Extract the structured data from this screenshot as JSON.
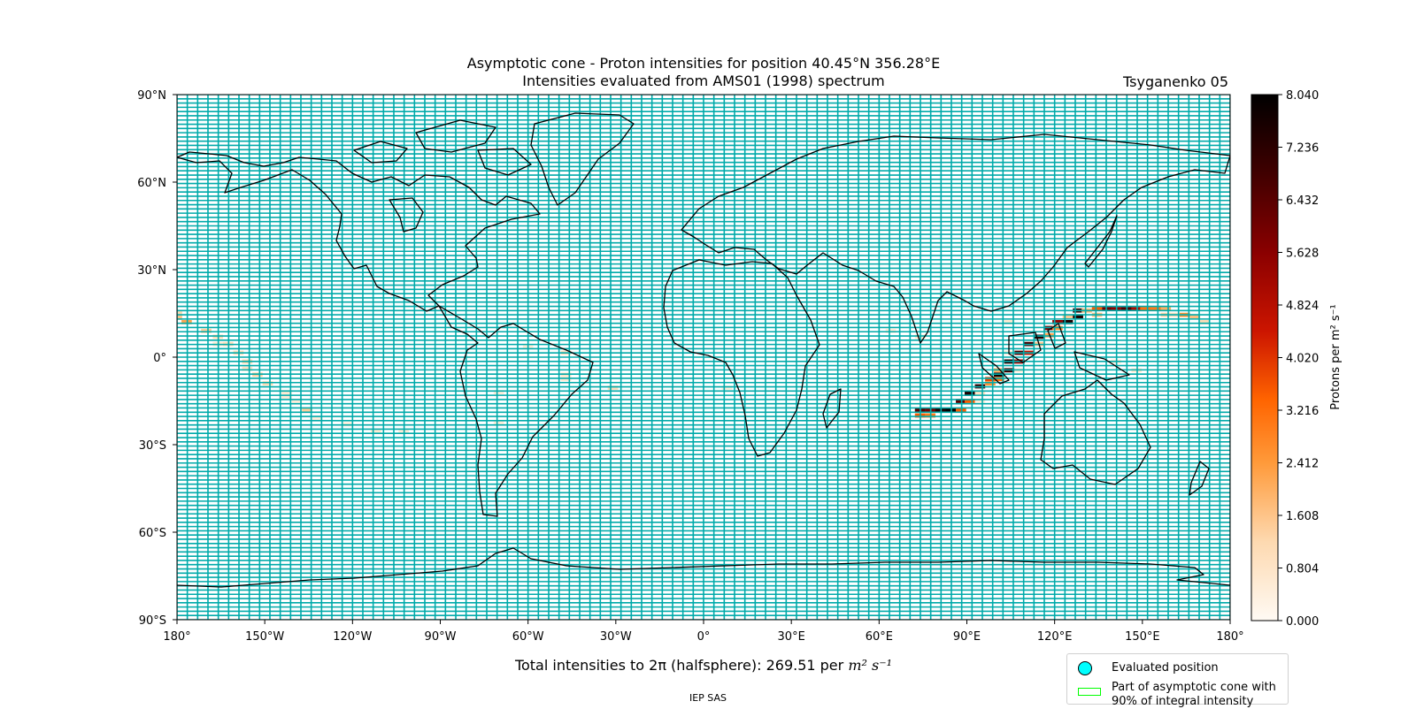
{
  "header": {
    "title_line1": "Asymptotic cone - Proton intensities for position 40.45°N 356.28°E",
    "title_line2": "Intensities evaluated from AMS01 (1998) spectrum",
    "model": "Tsyganenko 05"
  },
  "map": {
    "lat_ticks": [
      {
        "lat": 90,
        "label": "90°N"
      },
      {
        "lat": 60,
        "label": "60°N"
      },
      {
        "lat": 30,
        "label": "30°N"
      },
      {
        "lat": 0,
        "label": "0°"
      },
      {
        "lat": -30,
        "label": "30°S"
      },
      {
        "lat": -60,
        "label": "60°S"
      },
      {
        "lat": -90,
        "label": "90°S"
      }
    ],
    "lon_ticks": [
      {
        "lon": -180,
        "label": "180°"
      },
      {
        "lon": -150,
        "label": "150°W"
      },
      {
        "lon": -120,
        "label": "120°W"
      },
      {
        "lon": -90,
        "label": "90°W"
      },
      {
        "lon": -60,
        "label": "60°W"
      },
      {
        "lon": -30,
        "label": "30°W"
      },
      {
        "lon": 0,
        "label": "0°"
      },
      {
        "lon": 30,
        "label": "30°E"
      },
      {
        "lon": 60,
        "label": "60°E"
      },
      {
        "lon": 90,
        "label": "90°E"
      },
      {
        "lon": 120,
        "label": "120°E"
      },
      {
        "lon": 150,
        "label": "150°E"
      },
      {
        "lon": 180,
        "label": "180°"
      }
    ],
    "grid_color": "#00aaaa",
    "coast_color": "#000000"
  },
  "colorbar": {
    "label": "Protons per m² s⁻¹",
    "min": 0.0,
    "max": 8.04,
    "ticks": [
      "0.000",
      "0.804",
      "1.608",
      "2.412",
      "3.216",
      "4.020",
      "4.824",
      "5.628",
      "6.432",
      "7.236",
      "8.040"
    ]
  },
  "intensity_cells": [
    {
      "lon": -180,
      "lat": 13.5,
      "v": 1.6
    },
    {
      "lon": -176.7,
      "lat": 12,
      "v": 2.2
    },
    {
      "lon": -180,
      "lat": 15,
      "v": 1.2
    },
    {
      "lon": -170,
      "lat": 9,
      "v": 1.4
    },
    {
      "lon": -166,
      "lat": 7,
      "v": 1.0
    },
    {
      "lon": -166,
      "lat": 4.5,
      "v": 0.6
    },
    {
      "lon": -162.5,
      "lat": 4.5,
      "v": 1.0
    },
    {
      "lon": -159,
      "lat": 1.5,
      "v": 1.0
    },
    {
      "lon": -156,
      "lat": -1.5,
      "v": 1.2
    },
    {
      "lon": -156,
      "lat": -4,
      "v": 0.8
    },
    {
      "lon": -152.5,
      "lat": -6,
      "v": 1.3
    },
    {
      "lon": -149,
      "lat": -9,
      "v": 1.1
    },
    {
      "lon": -142.5,
      "lat": -12,
      "v": 0.6
    },
    {
      "lon": -142.5,
      "lat": -13.5,
      "v": 0.5
    },
    {
      "lon": -139,
      "lat": -15,
      "v": 0.5
    },
    {
      "lon": -135.5,
      "lat": -18,
      "v": 1.4
    },
    {
      "lon": -132,
      "lat": -21,
      "v": 0.4
    },
    {
      "lon": -122,
      "lat": -23,
      "v": 0.5
    },
    {
      "lon": -112,
      "lat": -25.5,
      "v": 0.6
    },
    {
      "lon": -102.5,
      "lat": -25.5,
      "v": 0.5
    },
    {
      "lon": -60,
      "lat": 3.5,
      "v": 0.5
    },
    {
      "lon": -70,
      "lat": -12,
      "v": 0.5
    },
    {
      "lon": -70,
      "lat": -22.5,
      "v": 0.5
    },
    {
      "lon": -47,
      "lat": 1.5,
      "v": 0.9
    },
    {
      "lon": -47,
      "lat": -6,
      "v": 0.7
    },
    {
      "lon": -47,
      "lat": -7.5,
      "v": 0.6
    },
    {
      "lon": -31,
      "lat": -10.5,
      "v": 0.9
    },
    {
      "lon": 8,
      "lat": -10.5,
      "v": 0.4
    },
    {
      "lon": 64,
      "lat": 9,
      "v": 0.5
    },
    {
      "lon": 74,
      "lat": 7,
      "v": 0.6
    },
    {
      "lon": 74,
      "lat": -18,
      "v": 6.5
    },
    {
      "lon": 77.5,
      "lat": -18,
      "v": 6.0
    },
    {
      "lon": 81,
      "lat": -18,
      "v": 7.5
    },
    {
      "lon": 84.5,
      "lat": -18,
      "v": 8.0
    },
    {
      "lon": 88,
      "lat": -18,
      "v": 3.5
    },
    {
      "lon": 74,
      "lat": -20,
      "v": 3.5
    },
    {
      "lon": 77.5,
      "lat": -20,
      "v": 3.0
    },
    {
      "lon": 88,
      "lat": -15,
      "v": 6.5
    },
    {
      "lon": 91,
      "lat": -15,
      "v": 3.5
    },
    {
      "lon": 91,
      "lat": -12.5,
      "v": 7.5
    },
    {
      "lon": 94.5,
      "lat": -12.5,
      "v": 0.8
    },
    {
      "lon": 94.5,
      "lat": -10,
      "v": 7.0
    },
    {
      "lon": 98,
      "lat": -9,
      "v": 2.5
    },
    {
      "lon": 98,
      "lat": -7.5,
      "v": 3.8
    },
    {
      "lon": 101,
      "lat": -6,
      "v": 7.8
    },
    {
      "lon": 101,
      "lat": -7.5,
      "v": 3.2
    },
    {
      "lon": 101,
      "lat": -4.5,
      "v": 2.0
    },
    {
      "lon": 104.5,
      "lat": -4.5,
      "v": 7.0
    },
    {
      "lon": 104.5,
      "lat": -1.5,
      "v": 7.5
    },
    {
      "lon": 108,
      "lat": -1.5,
      "v": 5.5
    },
    {
      "lon": 108,
      "lat": 1.5,
      "v": 6.5
    },
    {
      "lon": 111,
      "lat": 1.5,
      "v": 4.5
    },
    {
      "lon": 111,
      "lat": 4.5,
      "v": 6.8
    },
    {
      "lon": 114.5,
      "lat": 4.5,
      "v": 1.5
    },
    {
      "lon": 114.5,
      "lat": 7,
      "v": 7.5
    },
    {
      "lon": 118,
      "lat": 7.5,
      "v": 2.2
    },
    {
      "lon": 118,
      "lat": 10,
      "v": 6.0
    },
    {
      "lon": 121,
      "lat": 10,
      "v": 2.5
    },
    {
      "lon": 121,
      "lat": 12,
      "v": 5.5
    },
    {
      "lon": 124.5,
      "lat": 12,
      "v": 7.5
    },
    {
      "lon": 124.5,
      "lat": 14,
      "v": 1.5
    },
    {
      "lon": 128,
      "lat": 14,
      "v": 7.5
    },
    {
      "lon": 128,
      "lat": 16,
      "v": 7.0
    },
    {
      "lon": 131,
      "lat": 16,
      "v": 1.8
    },
    {
      "lon": 134.5,
      "lat": 16.5,
      "v": 3.5
    },
    {
      "lon": 134.5,
      "lat": 14.5,
      "v": 1.6
    },
    {
      "lon": 138,
      "lat": 16.5,
      "v": 6.0
    },
    {
      "lon": 141,
      "lat": 16.5,
      "v": 5.5
    },
    {
      "lon": 144.5,
      "lat": 16.5,
      "v": 6.5
    },
    {
      "lon": 148,
      "lat": 16.5,
      "v": 5.0
    },
    {
      "lon": 151,
      "lat": 16.5,
      "v": 3.2
    },
    {
      "lon": 154.5,
      "lat": 16.5,
      "v": 3.0
    },
    {
      "lon": 158,
      "lat": 16.5,
      "v": 2.0
    },
    {
      "lon": 158,
      "lat": 14.5,
      "v": 1.3
    },
    {
      "lon": 161,
      "lat": 14.5,
      "v": 1.0
    },
    {
      "lon": 164.5,
      "lat": 14.5,
      "v": 2.5
    },
    {
      "lon": 168,
      "lat": 14,
      "v": 1.7
    },
    {
      "lon": 171,
      "lat": 12,
      "v": 1.1
    },
    {
      "lon": 104.5,
      "lat": 12,
      "v": 0.6
    },
    {
      "lon": 104.5,
      "lat": 1.5,
      "v": 0.5
    },
    {
      "lon": 141,
      "lat": -1.5,
      "v": 0.5
    },
    {
      "lon": 148,
      "lat": -4.5,
      "v": 0.6
    },
    {
      "lon": 108,
      "lat": -4.5,
      "v": 0.5
    },
    {
      "lon": 94.5,
      "lat": -15,
      "v": 0.5
    }
  ],
  "footer": {
    "total_prefix": "Total intensities to 2π (halfsphere): 269.51 per ",
    "total_unit": "m² s⁻¹",
    "credit": "IEP SAS"
  },
  "legend": {
    "item1": "Evaluated position",
    "item2_line1": "Part of asymptotic cone with",
    "item2_line2": "90% of integral intensity",
    "marker1_color": "#00ffff",
    "marker2_color": "#00ff00"
  }
}
